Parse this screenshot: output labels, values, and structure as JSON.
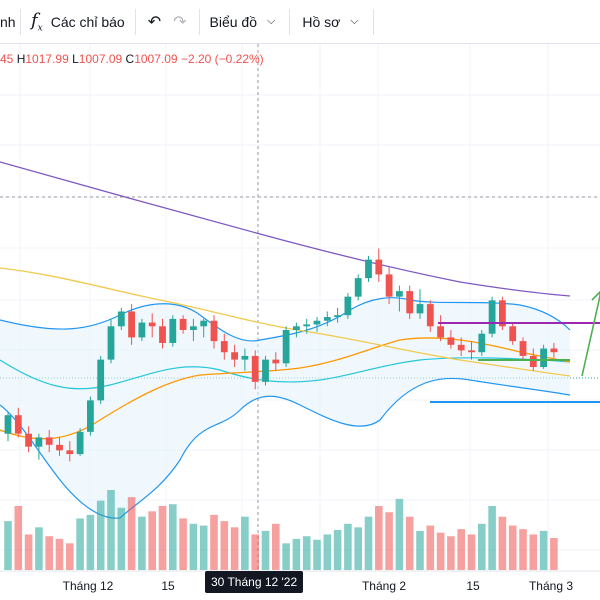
{
  "toolbar": {
    "cut_label": "nh",
    "indicators_label": "Các chỉ báo",
    "chart_menu_label": "Biểu đồ",
    "profile_menu_label": "Hồ sơ"
  },
  "ohlc": {
    "open_value": "45",
    "high_key": "H",
    "high_value": "1017.99",
    "low_key": "L",
    "low_value": "1007.09",
    "close_key": "C",
    "close_value": "1007.09",
    "change": "−2.20 (−0.22%)"
  },
  "colors": {
    "up": "#26a69a",
    "down": "#ef5350",
    "bollinger": "#2196f3",
    "ma_orange": "#ff9800",
    "ma_yellow": "#f2c94c",
    "ma_purple": "#7e57c2",
    "resistance": "#9c27b0",
    "support": "#2196f3",
    "midline": "#4caf50"
  },
  "x_axis": {
    "labels": [
      "Tháng 12",
      "15",
      "Tháng 2",
      "15",
      "Tháng 3"
    ],
    "crosshair_date": "30 Tháng 12 '22"
  },
  "chart_data": {
    "type": "candlestick",
    "candles": [
      [
        1000,
        1012,
        996,
        1010
      ],
      [
        1010,
        1014,
        998,
        1000
      ],
      [
        1000,
        1004,
        990,
        993
      ],
      [
        993,
        1000,
        986,
        998
      ],
      [
        998,
        1002,
        990,
        994
      ],
      [
        994,
        998,
        988,
        991
      ],
      [
        991,
        996,
        985,
        989
      ],
      [
        989,
        1003,
        988,
        1001
      ],
      [
        1001,
        1020,
        999,
        1018
      ],
      [
        1018,
        1042,
        1016,
        1040
      ],
      [
        1040,
        1062,
        1038,
        1058
      ],
      [
        1058,
        1068,
        1056,
        1066
      ],
      [
        1066,
        1070,
        1048,
        1052
      ],
      [
        1052,
        1062,
        1050,
        1060
      ],
      [
        1060,
        1065,
        1052,
        1058
      ],
      [
        1058,
        1062,
        1046,
        1049
      ],
      [
        1049,
        1064,
        1047,
        1062
      ],
      [
        1062,
        1064,
        1054,
        1056
      ],
      [
        1056,
        1062,
        1050,
        1058
      ],
      [
        1058,
        1062,
        1052,
        1061
      ],
      [
        1061,
        1064,
        1046,
        1050
      ],
      [
        1050,
        1054,
        1040,
        1044
      ],
      [
        1044,
        1048,
        1036,
        1040
      ],
      [
        1040,
        1046,
        1034,
        1042
      ],
      [
        1042,
        1045,
        1024,
        1028
      ],
      [
        1028,
        1042,
        1026,
        1040
      ],
      [
        1040,
        1044,
        1034,
        1038
      ],
      [
        1038,
        1058,
        1036,
        1056
      ],
      [
        1056,
        1060,
        1052,
        1058
      ],
      [
        1058,
        1062,
        1054,
        1059
      ],
      [
        1059,
        1063,
        1055,
        1061
      ],
      [
        1061,
        1066,
        1058,
        1063
      ],
      [
        1063,
        1068,
        1060,
        1064
      ],
      [
        1064,
        1076,
        1062,
        1074
      ],
      [
        1074,
        1086,
        1072,
        1084
      ],
      [
        1084,
        1096,
        1082,
        1094
      ],
      [
        1094,
        1100,
        1082,
        1086
      ],
      [
        1086,
        1090,
        1070,
        1074
      ],
      [
        1074,
        1080,
        1066,
        1077
      ],
      [
        1077,
        1080,
        1062,
        1065
      ],
      [
        1065,
        1078,
        1062,
        1070
      ],
      [
        1070,
        1072,
        1055,
        1058
      ],
      [
        1058,
        1064,
        1050,
        1052
      ],
      [
        1052,
        1056,
        1046,
        1048
      ],
      [
        1048,
        1052,
        1042,
        1045
      ],
      [
        1045,
        1050,
        1040,
        1044
      ],
      [
        1044,
        1056,
        1042,
        1054
      ],
      [
        1054,
        1074,
        1052,
        1072
      ],
      [
        1072,
        1074,
        1056,
        1058
      ],
      [
        1058,
        1060,
        1048,
        1050
      ],
      [
        1050,
        1052,
        1040,
        1042
      ],
      [
        1042,
        1046,
        1034,
        1036
      ],
      [
        1036,
        1048,
        1035,
        1046
      ],
      [
        1046,
        1049,
        1041,
        1044
      ]
    ],
    "volumes": [
      55,
      72,
      40,
      48,
      38,
      35,
      30,
      58,
      62,
      78,
      90,
      70,
      82,
      60,
      66,
      72,
      74,
      58,
      52,
      50,
      62,
      55,
      48,
      60,
      40,
      44,
      52,
      30,
      35,
      38,
      34,
      40,
      45,
      52,
      48,
      60,
      72,
      65,
      80,
      60,
      44,
      50,
      42,
      38,
      46,
      40,
      52,
      72,
      60,
      50,
      46,
      40,
      44,
      36
    ],
    "up_color": "#26a69a",
    "down_color": "#ef5350"
  }
}
